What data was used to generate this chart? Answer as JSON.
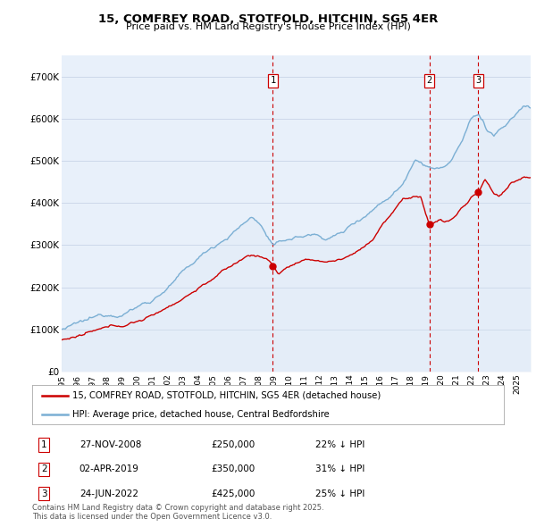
{
  "title": "15, COMFREY ROAD, STOTFOLD, HITCHIN, SG5 4ER",
  "subtitle": "Price paid vs. HM Land Registry's House Price Index (HPI)",
  "ylim": [
    0,
    750000
  ],
  "yticks": [
    0,
    100000,
    200000,
    300000,
    400000,
    500000,
    600000,
    700000
  ],
  "ytick_labels": [
    "£0",
    "£100K",
    "£200K",
    "£300K",
    "£400K",
    "£500K",
    "£600K",
    "£700K"
  ],
  "xlim_start": 1995.0,
  "xlim_end": 2025.92,
  "sale_dates": [
    2008.92,
    2019.25,
    2022.47
  ],
  "sale_prices": [
    250000,
    350000,
    425000
  ],
  "sale_labels": [
    "1",
    "2",
    "3"
  ],
  "legend_property": "15, COMFREY ROAD, STOTFOLD, HITCHIN, SG5 4ER (detached house)",
  "legend_hpi": "HPI: Average price, detached house, Central Bedfordshire",
  "transactions": [
    {
      "label": "1",
      "date": "27-NOV-2008",
      "price": "£250,000",
      "pct": "22% ↓ HPI"
    },
    {
      "label": "2",
      "date": "02-APR-2019",
      "price": "£350,000",
      "pct": "31% ↓ HPI"
    },
    {
      "label": "3",
      "date": "24-JUN-2022",
      "price": "£425,000",
      "pct": "25% ↓ HPI"
    }
  ],
  "footnote": "Contains HM Land Registry data © Crown copyright and database right 2025.\nThis data is licensed under the Open Government Licence v3.0.",
  "property_line_color": "#cc0000",
  "hpi_line_color": "#7bafd4",
  "hpi_fill_color": "#dce8f5",
  "vline_color": "#cc0000",
  "background_color": "#e8f0fa",
  "grid_color": "#c8d4e8"
}
